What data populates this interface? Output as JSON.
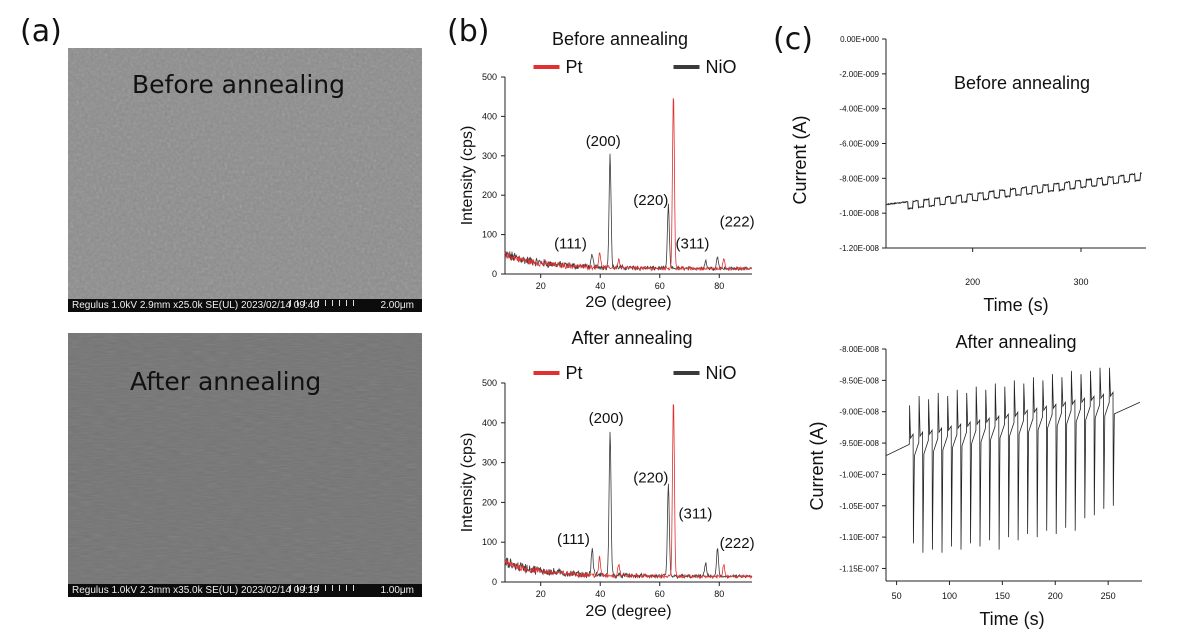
{
  "panel_labels": {
    "a": "(a)",
    "b": "(b)",
    "c": "(c)"
  },
  "sem_images": [
    {
      "title": "Before annealing",
      "info": "Regulus 1.0kV 2.9mm x25.0k SE(UL) 2023/02/14 09:40",
      "scale": "2.00μm",
      "tone": "#8c8c8c"
    },
    {
      "title": "After annealing",
      "info": "Regulus 1.0kV 2.3mm x35.0k SE(UL) 2023/02/14 09:19",
      "scale": "1.00μm",
      "tone": "#737373"
    }
  ],
  "colors": {
    "pt": "#e03030",
    "nio": "#3a3a3a",
    "current": "#222222"
  },
  "chart_data": [
    {
      "type": "line",
      "title": "Before annealing",
      "xlabel": "2Θ (degree)",
      "ylabel": "Intensity (cps)",
      "xlim": [
        8,
        91
      ],
      "ylim": [
        0,
        500
      ],
      "xticks": [
        "20",
        "40",
        "60",
        "80"
      ],
      "yticks": [
        "0",
        "100",
        "200",
        "300",
        "400",
        "500"
      ],
      "legend_position": "top",
      "series": [
        {
          "name": "Pt",
          "peaks": [
            [
              39.8,
              40
            ],
            [
              46.2,
              22
            ],
            [
              64.6,
              448
            ],
            [
              81.5,
              25
            ]
          ]
        },
        {
          "name": "NiO",
          "peaks": [
            [
              37.3,
              28
            ],
            [
              43.3,
              290
            ],
            [
              62.9,
              160
            ],
            [
              75.4,
              20
            ],
            [
              79.4,
              30
            ]
          ]
        }
      ],
      "annotations": [
        {
          "text": "(111)",
          "x": 30,
          "y": 65
        },
        {
          "text": "(200)",
          "x": 41,
          "y": 325
        },
        {
          "text": "(220)",
          "x": 57,
          "y": 175
        },
        {
          "text": "(311)",
          "x": 71,
          "y": 65
        },
        {
          "text": "(222)",
          "x": 86,
          "y": 120
        }
      ]
    },
    {
      "type": "line",
      "title": "After annealing",
      "xlabel": "2Θ (degree)",
      "ylabel": "Intensity (cps)",
      "xlim": [
        8,
        91
      ],
      "ylim": [
        0,
        500
      ],
      "xticks": [
        "20",
        "40",
        "60",
        "80"
      ],
      "yticks": [
        "0",
        "100",
        "200",
        "300",
        "400",
        "500"
      ],
      "legend_position": "top",
      "series": [
        {
          "name": "Pt",
          "peaks": [
            [
              39.8,
              45
            ],
            [
              46.2,
              30
            ],
            [
              64.6,
              448
            ],
            [
              81.5,
              30
            ]
          ]
        },
        {
          "name": "NiO",
          "peaks": [
            [
              37.3,
              65
            ],
            [
              43.3,
              365
            ],
            [
              62.9,
              230
            ],
            [
              75.4,
              35
            ],
            [
              79.4,
              72
            ]
          ]
        }
      ],
      "annotations": [
        {
          "text": "(111)",
          "x": 31,
          "y": 95
        },
        {
          "text": "(200)",
          "x": 42,
          "y": 400
        },
        {
          "text": "(220)",
          "x": 57,
          "y": 250
        },
        {
          "text": "(311)",
          "x": 72,
          "y": 160
        },
        {
          "text": "(222)",
          "x": 86,
          "y": 85
        }
      ]
    },
    {
      "type": "line",
      "title": "Before annealing",
      "xlabel": "Time (s)",
      "ylabel": "Current (A)",
      "xlim": [
        120,
        360
      ],
      "ylim": [
        -1.2e-08,
        0
      ],
      "xticks": [
        "200",
        "300"
      ],
      "yticks": [
        "0.00E+000",
        "-2.00E-009",
        "-4.00E-009",
        "-6.00E-009",
        "-8.00E-009",
        "-1.00E-008",
        "-1.20E-008"
      ],
      "start": [
        120,
        -9.5e-09
      ],
      "end": [
        356,
        -7.7e-09
      ],
      "step_period_s": 10,
      "step_amplitude_a": -4e-10
    },
    {
      "type": "line",
      "title": "After annealing",
      "xlabel": "Time (s)",
      "ylabel": "Current (A)",
      "xlim": [
        40,
        282
      ],
      "ylim": [
        -1.17e-07,
        -8e-08
      ],
      "xticks": [
        "50",
        "100",
        "150",
        "200",
        "250"
      ],
      "yticks": [
        "-8.00E-008",
        "-8.50E-008",
        "-9.00E-008",
        "-9.50E-008",
        "-1.00E-007",
        "-1.05E-007",
        "-1.10E-007",
        "-1.15E-007"
      ],
      "baseline_start": [
        40,
        -9.7e-08
      ],
      "baseline_end": [
        280,
        -8.85e-08
      ],
      "pulses": [
        {
          "t": 62,
          "up": -8.9e-08,
          "down": -1.11e-07
        },
        {
          "t": 71,
          "up": -8.75e-08,
          "down": -1.125e-07
        },
        {
          "t": 80,
          "up": -8.8e-08,
          "down": -1.12e-07
        },
        {
          "t": 89,
          "up": -8.7e-08,
          "down": -1.125e-07
        },
        {
          "t": 98,
          "up": -8.75e-08,
          "down": -1.115e-07
        },
        {
          "t": 107,
          "up": -8.65e-08,
          "down": -1.12e-07
        },
        {
          "t": 116,
          "up": -8.7e-08,
          "down": -1.11e-07
        },
        {
          "t": 125,
          "up": -8.6e-08,
          "down": -1.115e-07
        },
        {
          "t": 134,
          "up": -8.65e-08,
          "down": -1.105e-07
        },
        {
          "t": 143,
          "up": -8.55e-08,
          "down": -1.12e-07
        },
        {
          "t": 152,
          "up": -8.6e-08,
          "down": -1.1e-07
        },
        {
          "t": 161,
          "up": -8.5e-08,
          "down": -1.105e-07
        },
        {
          "t": 170,
          "up": -8.55e-08,
          "down": -1.095e-07
        },
        {
          "t": 179,
          "up": -8.45e-08,
          "down": -1.1e-07
        },
        {
          "t": 188,
          "up": -8.5e-08,
          "down": -1.09e-07
        },
        {
          "t": 197,
          "up": -8.4e-08,
          "down": -1.095e-07
        },
        {
          "t": 206,
          "up": -8.45e-08,
          "down": -1.085e-07
        },
        {
          "t": 215,
          "up": -8.35e-08,
          "down": -1.09e-07
        },
        {
          "t": 224,
          "up": -8.4e-08,
          "down": -1.07e-07
        },
        {
          "t": 233,
          "up": -8.35e-08,
          "down": -1.065e-07
        },
        {
          "t": 242,
          "up": -8.3e-08,
          "down": -1.055e-07
        },
        {
          "t": 251,
          "up": -8.3e-08,
          "down": -1.05e-07
        }
      ]
    }
  ]
}
